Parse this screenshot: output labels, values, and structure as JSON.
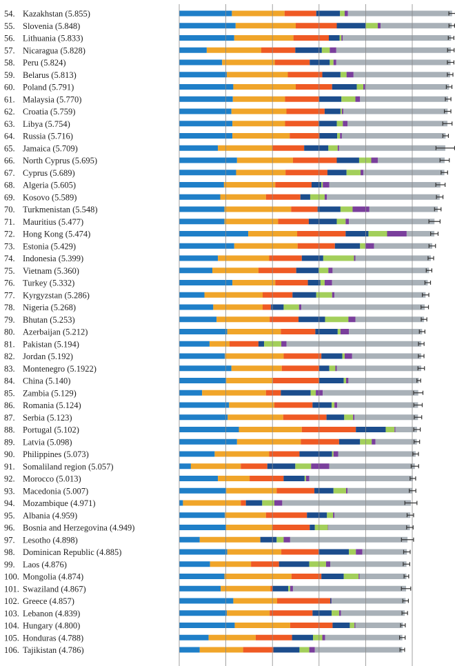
{
  "chart_data": {
    "type": "bar",
    "orientation": "horizontal",
    "stacked": true,
    "error_bars": true,
    "grid": true,
    "xlim": [
      0,
      7
    ],
    "colors": {
      "gdp": "#1f7fc8",
      "social": "#f0a52a",
      "health": "#ef5a24",
      "freedom": "#1c4d8c",
      "generosity": "#a3cf5b",
      "corruption": "#7a3f9c",
      "residual": "#a9b1b8",
      "whisker": "#333333"
    },
    "segment_keys": [
      "gdp",
      "social",
      "health",
      "freedom",
      "generosity",
      "corruption",
      "residual"
    ],
    "rows": [
      {
        "rank": "54.",
        "country": "Kazakhstan",
        "score": "5.855",
        "value": 5.855,
        "err": 0.07,
        "seg": [
          1.13,
          1.13,
          0.68,
          0.51,
          0.1,
          0.07
        ]
      },
      {
        "rank": "55.",
        "country": "Slovenia",
        "score": "5.848",
        "value": 5.848,
        "err": 0.06,
        "seg": [
          1.21,
          1.29,
          0.88,
          0.62,
          0.26,
          0.06
        ]
      },
      {
        "rank": "56.",
        "country": "Lithuania",
        "score": "5.833",
        "value": 5.833,
        "err": 0.06,
        "seg": [
          1.18,
          1.27,
          0.76,
          0.23,
          0.04,
          0.03
        ]
      },
      {
        "rank": "57.",
        "country": "Nicaragua",
        "score": "5.828",
        "value": 5.828,
        "err": 0.07,
        "seg": [
          0.59,
          1.17,
          0.73,
          0.57,
          0.17,
          0.14
        ]
      },
      {
        "rank": "58.",
        "country": "Peru",
        "score": "5.824",
        "value": 5.824,
        "err": 0.07,
        "seg": [
          0.92,
          1.13,
          0.75,
          0.43,
          0.08,
          0.06
        ]
      },
      {
        "rank": "59.",
        "country": "Belarus",
        "score": "5.813",
        "value": 5.813,
        "err": 0.06,
        "seg": [
          1.02,
          1.31,
          0.74,
          0.39,
          0.13,
          0.15
        ]
      },
      {
        "rank": "60.",
        "country": "Poland",
        "score": "5.791",
        "value": 5.791,
        "err": 0.06,
        "seg": [
          1.16,
          1.34,
          0.78,
          0.53,
          0.14,
          0.04
        ]
      },
      {
        "rank": "61.",
        "country": "Malaysia",
        "score": "5.770",
        "value": 5.77,
        "err": 0.06,
        "seg": [
          1.15,
          1.12,
          0.73,
          0.48,
          0.3,
          0.1
        ]
      },
      {
        "rank": "62.",
        "country": "Croatia",
        "score": "5.759",
        "value": 5.759,
        "err": 0.07,
        "seg": [
          1.12,
          1.18,
          0.82,
          0.34,
          0.03,
          0.03
        ]
      },
      {
        "rank": "63.",
        "country": "Libya",
        "score": "5.754",
        "value": 5.754,
        "err": 0.1,
        "seg": [
          1.14,
          1.13,
          0.72,
          0.39,
          0.13,
          0.1
        ]
      },
      {
        "rank": "64.",
        "country": "Russia",
        "score": "5.716",
        "value": 5.716,
        "err": 0.06,
        "seg": [
          1.14,
          1.23,
          0.64,
          0.38,
          0.06,
          0.04
        ]
      },
      {
        "rank": "65.",
        "country": "Jamaica",
        "score": "5.709",
        "value": 5.709,
        "err": 0.2,
        "seg": [
          0.83,
          1.17,
          0.68,
          0.52,
          0.2,
          0.03
        ]
      },
      {
        "rank": "66.",
        "country": "North Cyprus",
        "score": "5.695",
        "value": 5.695,
        "err": 0.1,
        "seg": [
          1.24,
          1.2,
          0.94,
          0.48,
          0.26,
          0.14
        ]
      },
      {
        "rank": "67.",
        "country": "Cyprus",
        "score": "5.689",
        "value": 5.689,
        "err": 0.07,
        "seg": [
          1.22,
          1.06,
          0.9,
          0.41,
          0.3,
          0.06
        ]
      },
      {
        "rank": "68.",
        "country": "Algeria",
        "score": "5.605",
        "value": 5.605,
        "err": 0.1,
        "seg": [
          0.96,
          1.1,
          0.78,
          0.21,
          0.03,
          0.14
        ]
      },
      {
        "rank": "69.",
        "country": "Kosovo",
        "score": "5.589",
        "value": 5.589,
        "err": 0.07,
        "seg": [
          0.88,
          0.98,
          0.74,
          0.21,
          0.31,
          0.05
        ]
      },
      {
        "rank": "70.",
        "country": "Turkmenistan",
        "score": "5.548",
        "value": 5.548,
        "err": 0.07,
        "seg": [
          0.97,
          1.43,
          0.57,
          0.49,
          0.26,
          0.36
        ]
      },
      {
        "rank": "71.",
        "country": "Mauritius",
        "score": "5.477",
        "value": 5.477,
        "err": 0.12,
        "seg": [
          0.97,
          1.15,
          0.66,
          0.6,
          0.19,
          0.07
        ]
      },
      {
        "rank": "72.",
        "country": "Hong Kong",
        "score": "5.474",
        "value": 5.474,
        "err": 0.08,
        "seg": [
          1.48,
          1.05,
          1.04,
          0.49,
          0.4,
          0.42
        ]
      },
      {
        "rank": "73.",
        "country": "Estonia",
        "score": "5.429",
        "value": 5.429,
        "err": 0.07,
        "seg": [
          1.18,
          1.36,
          0.8,
          0.54,
          0.11,
          0.19
        ]
      },
      {
        "rank": "74.",
        "country": "Indonesia",
        "score": "5.399",
        "value": 5.399,
        "err": 0.06,
        "seg": [
          0.83,
          1.1,
          0.7,
          0.46,
          0.66,
          0.03
        ]
      },
      {
        "rank": "75.",
        "country": "Vietnam",
        "score": "5.360",
        "value": 5.36,
        "err": 0.06,
        "seg": [
          0.71,
          0.99,
          0.81,
          0.48,
          0.21,
          0.09
        ]
      },
      {
        "rank": "76.",
        "country": "Turkey",
        "score": "5.332",
        "value": 5.332,
        "err": 0.06,
        "seg": [
          1.14,
          0.92,
          0.7,
          0.27,
          0.09,
          0.16
        ]
      },
      {
        "rank": "77.",
        "country": "Kyrgyzstan",
        "score": "5.286",
        "value": 5.286,
        "err": 0.07,
        "seg": [
          0.54,
          1.25,
          0.64,
          0.51,
          0.34,
          0.05
        ]
      },
      {
        "rank": "78.",
        "country": "Nigeria",
        "score": "5.268",
        "value": 5.268,
        "err": 0.08,
        "seg": [
          0.73,
          1.06,
          0.18,
          0.27,
          0.33,
          0.05
        ]
      },
      {
        "rank": "79.",
        "country": "Bhutan",
        "score": "5.253",
        "value": 5.253,
        "err": 0.06,
        "seg": [
          0.8,
          1.14,
          0.62,
          0.57,
          0.5,
          0.15
        ]
      },
      {
        "rank": "80.",
        "country": "Azerbaijan",
        "score": "5.212",
        "value": 5.212,
        "err": 0.06,
        "seg": [
          1.03,
          1.15,
          0.74,
          0.48,
          0.06,
          0.18
        ]
      },
      {
        "rank": "81.",
        "country": "Pakistan",
        "score": "5.194",
        "value": 5.194,
        "err": 0.06,
        "seg": [
          0.65,
          0.43,
          0.62,
          0.12,
          0.37,
          0.11
        ]
      },
      {
        "rank": "82.",
        "country": "Jordan",
        "score": "5.192",
        "value": 5.192,
        "err": 0.06,
        "seg": [
          0.98,
          1.26,
          0.81,
          0.45,
          0.05,
          0.16
        ]
      },
      {
        "rank": "83.",
        "country": "Montenegro",
        "score": "5.1922",
        "value": 5.1922,
        "err": 0.07,
        "seg": [
          1.12,
          1.08,
          0.8,
          0.22,
          0.13,
          0.03
        ]
      },
      {
        "rank": "84.",
        "country": "China",
        "score": "5.140",
        "value": 5.14,
        "err": 0.04,
        "seg": [
          1.01,
          1.0,
          0.99,
          0.53,
          0.05,
          0.05
        ]
      },
      {
        "rank": "85.",
        "country": "Zambia",
        "score": "5.129",
        "value": 5.129,
        "err": 0.1,
        "seg": [
          0.49,
          1.37,
          0.32,
          0.64,
          0.11,
          0.15
        ]
      },
      {
        "rank": "86.",
        "country": "Romania",
        "score": "5.124",
        "value": 5.124,
        "err": 0.09,
        "seg": [
          1.07,
          0.97,
          0.82,
          0.41,
          0.06,
          0.06
        ]
      },
      {
        "rank": "87.",
        "country": "Serbia",
        "score": "5.123",
        "value": 5.123,
        "err": 0.08,
        "seg": [
          1.04,
          1.19,
          0.93,
          0.38,
          0.19,
          0.03
        ]
      },
      {
        "rank": "88.",
        "country": "Portugal",
        "score": "5.102",
        "value": 5.102,
        "err": 0.07,
        "seg": [
          1.28,
          1.35,
          1.16,
          0.64,
          0.19,
          0.02
        ]
      },
      {
        "rank": "89.",
        "country": "Latvia",
        "score": "5.098",
        "value": 5.098,
        "err": 0.06,
        "seg": [
          1.24,
          1.37,
          0.82,
          0.45,
          0.25,
          0.08
        ]
      },
      {
        "rank": "90.",
        "country": "Philippines",
        "score": "5.073",
        "value": 5.073,
        "err": 0.06,
        "seg": [
          0.76,
          1.17,
          0.65,
          0.7,
          0.03,
          0.1
        ]
      },
      {
        "rank": "91.",
        "country": "Somaliland region",
        "score": "5.057",
        "value": 5.057,
        "err": 0.08,
        "seg": [
          0.25,
          1.07,
          0.57,
          0.6,
          0.34,
          0.39
        ]
      },
      {
        "rank": "92.",
        "country": "Morocco",
        "score": "5.013",
        "value": 5.013,
        "err": 0.06,
        "seg": [
          0.83,
          0.68,
          0.73,
          0.45,
          0.03,
          0.07
        ]
      },
      {
        "rank": "93.",
        "country": "Macedonia",
        "score": "5.007",
        "value": 5.007,
        "err": 0.07,
        "seg": [
          1.01,
          1.08,
          0.81,
          0.41,
          0.27,
          0.03
        ]
      },
      {
        "rank": "94.",
        "country": "Mozambique",
        "score": "4.971",
        "value": 4.971,
        "err": 0.13,
        "seg": [
          0.08,
          1.24,
          0.11,
          0.35,
          0.26,
          0.17
        ]
      },
      {
        "rank": "95.",
        "country": "Albania",
        "score": "4.959",
        "value": 4.959,
        "err": 0.07,
        "seg": [
          0.98,
          0.88,
          0.88,
          0.43,
          0.13,
          0.03
        ]
      },
      {
        "rank": "96.",
        "country": "Bosnia and Herzegovina",
        "score": "4.949",
        "value": 4.949,
        "err": 0.07,
        "seg": [
          1.0,
          1.0,
          0.8,
          0.11,
          0.28,
          0.01
        ]
      },
      {
        "rank": "97.",
        "country": "Lesotho",
        "score": "4.898",
        "value": 4.898,
        "err": 0.13,
        "seg": [
          0.44,
          1.3,
          0.0,
          0.35,
          0.15,
          0.14
        ]
      },
      {
        "rank": "98.",
        "country": "Dominican Republic",
        "score": "4.885",
        "value": 4.885,
        "err": 0.07,
        "seg": [
          1.03,
          1.16,
          0.8,
          0.65,
          0.15,
          0.14
        ]
      },
      {
        "rank": "99.",
        "country": "Laos",
        "score": "4.876",
        "value": 4.876,
        "err": 0.07,
        "seg": [
          0.66,
          0.88,
          0.6,
          0.65,
          0.36,
          0.09
        ]
      },
      {
        "rank": "100.",
        "country": "Mongolia",
        "score": "4.874",
        "value": 4.874,
        "err": 0.05,
        "seg": [
          0.97,
          1.44,
          0.64,
          0.48,
          0.32,
          0.02
        ]
      },
      {
        "rank": "101.",
        "country": "Swaziland",
        "score": "4.867",
        "value": 4.867,
        "err": 0.1,
        "seg": [
          0.89,
          1.07,
          0.04,
          0.34,
          0.04,
          0.06
        ]
      },
      {
        "rank": "102.",
        "country": "Greece",
        "score": "4.857",
        "value": 4.857,
        "err": 0.06,
        "seg": [
          1.16,
          0.94,
          1.14,
          0.02,
          0.0,
          0.01
        ]
      },
      {
        "rank": "103.",
        "country": "Lebanon",
        "score": "4.839",
        "value": 4.839,
        "err": 0.06,
        "seg": [
          1.02,
          0.92,
          0.92,
          0.41,
          0.16,
          0.04
        ]
      },
      {
        "rank": "104.",
        "country": "Hungary",
        "score": "4.800",
        "value": 4.8,
        "err": 0.05,
        "seg": [
          1.19,
          1.19,
          0.91,
          0.37,
          0.1,
          0.02
        ]
      },
      {
        "rank": "105.",
        "country": "Honduras",
        "score": "4.788",
        "value": 4.788,
        "err": 0.06,
        "seg": [
          0.63,
          1.01,
          0.78,
          0.45,
          0.2,
          0.06
        ]
      },
      {
        "rank": "106.",
        "country": "Tajikistan",
        "score": "4.786",
        "value": 4.786,
        "err": 0.05,
        "seg": [
          0.44,
          0.93,
          0.65,
          0.56,
          0.21,
          0.12
        ]
      }
    ]
  }
}
